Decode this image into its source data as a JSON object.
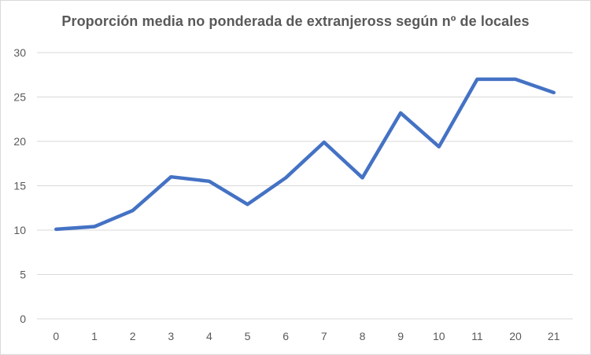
{
  "chart_data": {
    "type": "line",
    "title": "Proporción media no ponderada de extranjeross según nº de locales",
    "xlabel": "",
    "ylabel": "",
    "categories": [
      "0",
      "1",
      "2",
      "3",
      "4",
      "5",
      "6",
      "7",
      "8",
      "9",
      "10",
      "11",
      "20",
      "21"
    ],
    "series": [
      {
        "values": [
          10.1,
          10.4,
          12.2,
          16.0,
          15.5,
          12.9,
          15.9,
          19.9,
          15.9,
          23.2,
          19.4,
          27.0,
          27.0,
          25.5
        ]
      }
    ],
    "ylim": [
      0,
      30
    ],
    "yticks": [
      0,
      5,
      10,
      15,
      20,
      25,
      30
    ],
    "grid": true,
    "legend": "none",
    "colors": {
      "line": "#4472c4",
      "grid": "#d9d9d9",
      "text": "#595959"
    }
  }
}
